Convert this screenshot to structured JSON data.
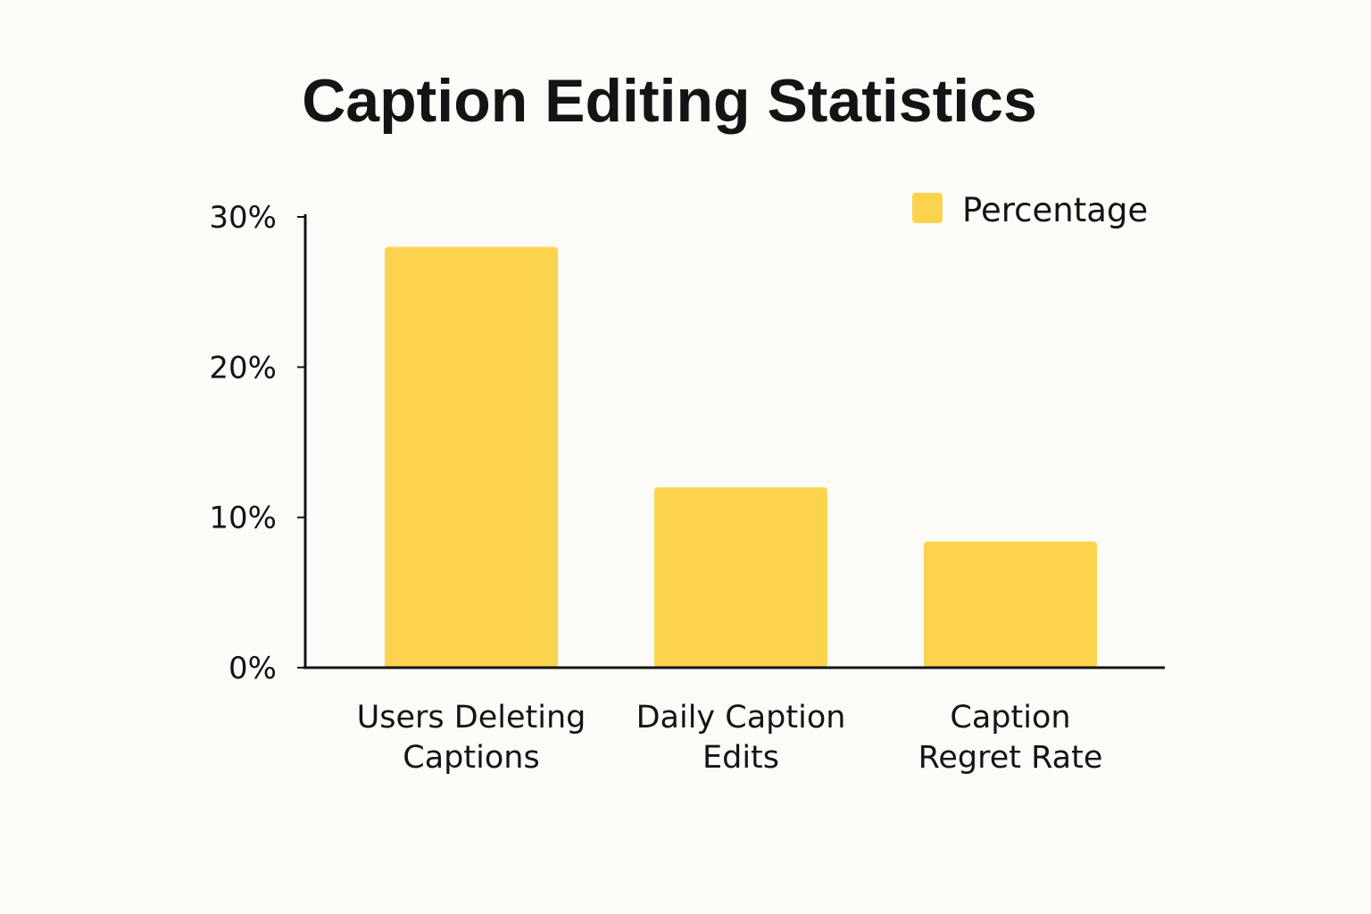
{
  "chart_data": {
    "type": "bar",
    "title": "Caption Editing Statistics",
    "categories": [
      "Users Deleting Captions",
      "Daily Caption Edits",
      "Caption Regret Rate"
    ],
    "category_label_lines": [
      [
        "Users Deleting",
        "Captions"
      ],
      [
        "Daily Caption",
        "Edits"
      ],
      [
        "Caption",
        "Regret Rate"
      ]
    ],
    "series": [
      {
        "name": "Percentage",
        "values": [
          28,
          12,
          8.4
        ],
        "color": "#fcd34d"
      }
    ],
    "ylim": [
      0,
      30
    ],
    "yticks": [
      0,
      10,
      20,
      30
    ],
    "ytick_labels": [
      "0%",
      "10%",
      "20%",
      "30%"
    ],
    "xlabel": "",
    "ylabel": "",
    "grid": false,
    "legend_position": "top-right"
  }
}
